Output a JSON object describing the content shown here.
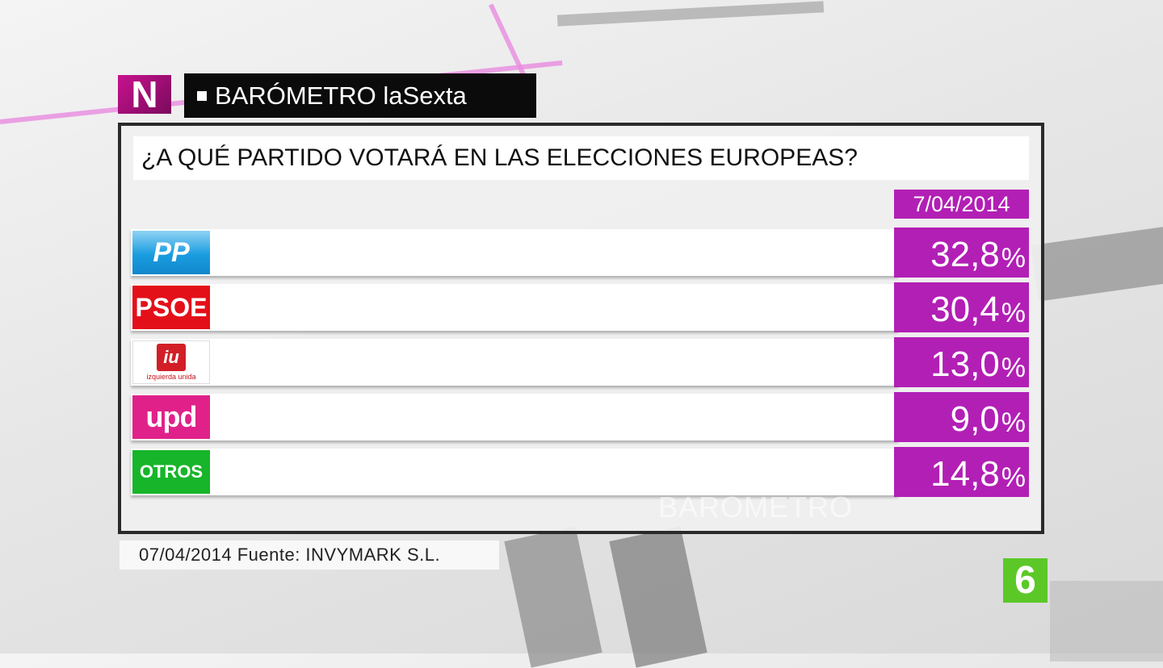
{
  "header": {
    "channel_logo_letter": "N",
    "title": "BARÓMETRO laSexta"
  },
  "question": "¿A QUÉ PARTIDO VOTARÁ EN LAS ELECCIONES EUROPEAS?",
  "watermark": "BARÓMETRO",
  "source": "07/04/2014 Fuente: INVYMARK S.L.",
  "network_logo": "6",
  "colors": {
    "accent": "#b21fb5",
    "pp": "#1a9de0",
    "psoe": "#e3101a",
    "iu": "#d21f27",
    "upyd": "#e0218a",
    "otros": "#17b52a",
    "network": "#5cc828"
  },
  "chart_data": {
    "type": "table",
    "column_header": "7/04/2014",
    "categories": [
      "PP",
      "PSOE",
      "IU",
      "UPyD",
      "OTROS"
    ],
    "values": [
      32.8,
      30.4,
      13.0,
      9.0,
      14.8
    ],
    "rows": [
      {
        "logo_text": "PP",
        "value_text": "32,8",
        "unit": "%"
      },
      {
        "logo_text": "PSOE",
        "value_text": "30,4",
        "unit": "%"
      },
      {
        "logo_text": "iu",
        "logo_subtext": "izquierda unida",
        "value_text": "13,0",
        "unit": "%"
      },
      {
        "logo_text": "upd",
        "value_text": "9,0",
        "unit": "%"
      },
      {
        "logo_text": "OTROS",
        "value_text": "14,8",
        "unit": "%"
      }
    ]
  }
}
